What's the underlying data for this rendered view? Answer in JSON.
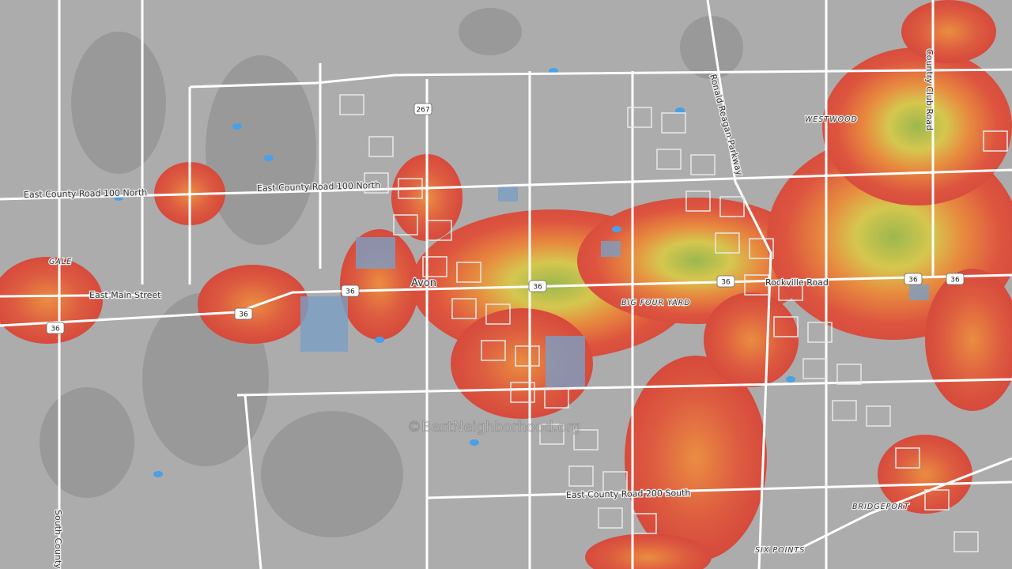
{
  "roads": [
    "East County Road 100 North",
    "East County Road 100 North",
    "East Main Street",
    "Rockville Road",
    "Ronald Reagan Parkway",
    "Country Club Road",
    "East County Road 200 South",
    "South County"
  ],
  "places": [
    "Avon",
    "GALE",
    "WESTWOOD",
    "BIG FOUR YARD",
    "BRIDGEPORT",
    "SIX POINTS"
  ],
  "shields": [
    "267",
    "36",
    "36",
    "36",
    "36",
    "36",
    "36",
    "36"
  ],
  "watermark": "©BestNeighborhood.org"
}
